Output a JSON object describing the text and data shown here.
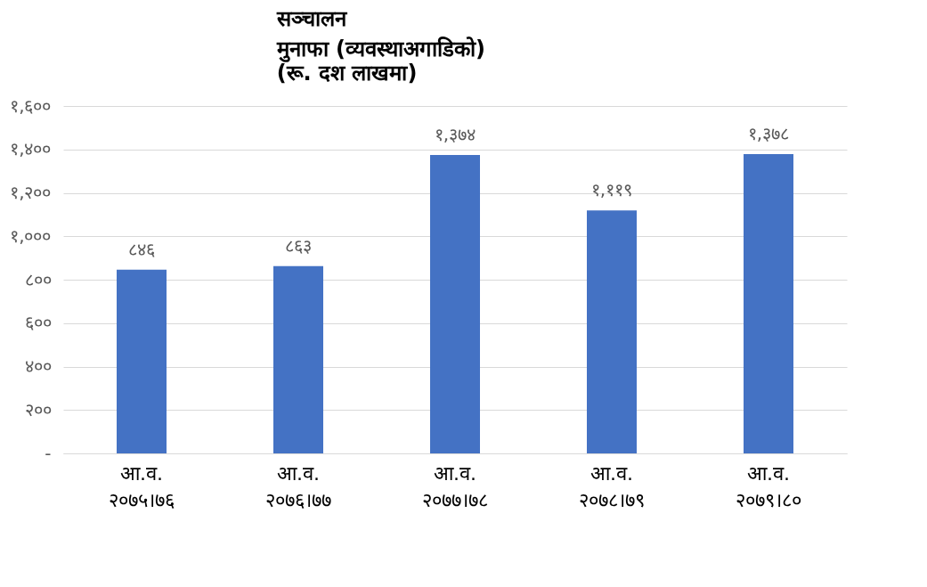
{
  "chart_data": {
    "type": "bar",
    "title": "सञ्चालन\nमुनाफा (व्यवस्थाअगाडिको)",
    "subtitle": "(रू. दश लाखमा)",
    "categories": [
      "आ.व.\n२०७५।७६",
      "आ.व.\n२०७६।७७",
      "आ.व.\n२०७७।७८",
      "आ.व.\n२०७८।७९",
      "आ.व.\n२०७९।८०"
    ],
    "values": [
      846,
      863,
      1374,
      1119,
      1378
    ],
    "value_labels": [
      "८४६",
      "८६३",
      "१,३७४",
      "१,११९",
      "१,३७८"
    ],
    "color": "#4472c4",
    "ylim": [
      0,
      1600
    ],
    "yticks": [
      {
        "value": 0,
        "label": "-"
      },
      {
        "value": 200,
        "label": "२००"
      },
      {
        "value": 400,
        "label": "४००"
      },
      {
        "value": 600,
        "label": "६००"
      },
      {
        "value": 800,
        "label": "८००"
      },
      {
        "value": 1000,
        "label": "१,०००"
      },
      {
        "value": 1200,
        "label": "१,२००"
      },
      {
        "value": 1400,
        "label": "१,४००"
      },
      {
        "value": 1600,
        "label": "१,६००"
      }
    ],
    "grid": "y"
  }
}
